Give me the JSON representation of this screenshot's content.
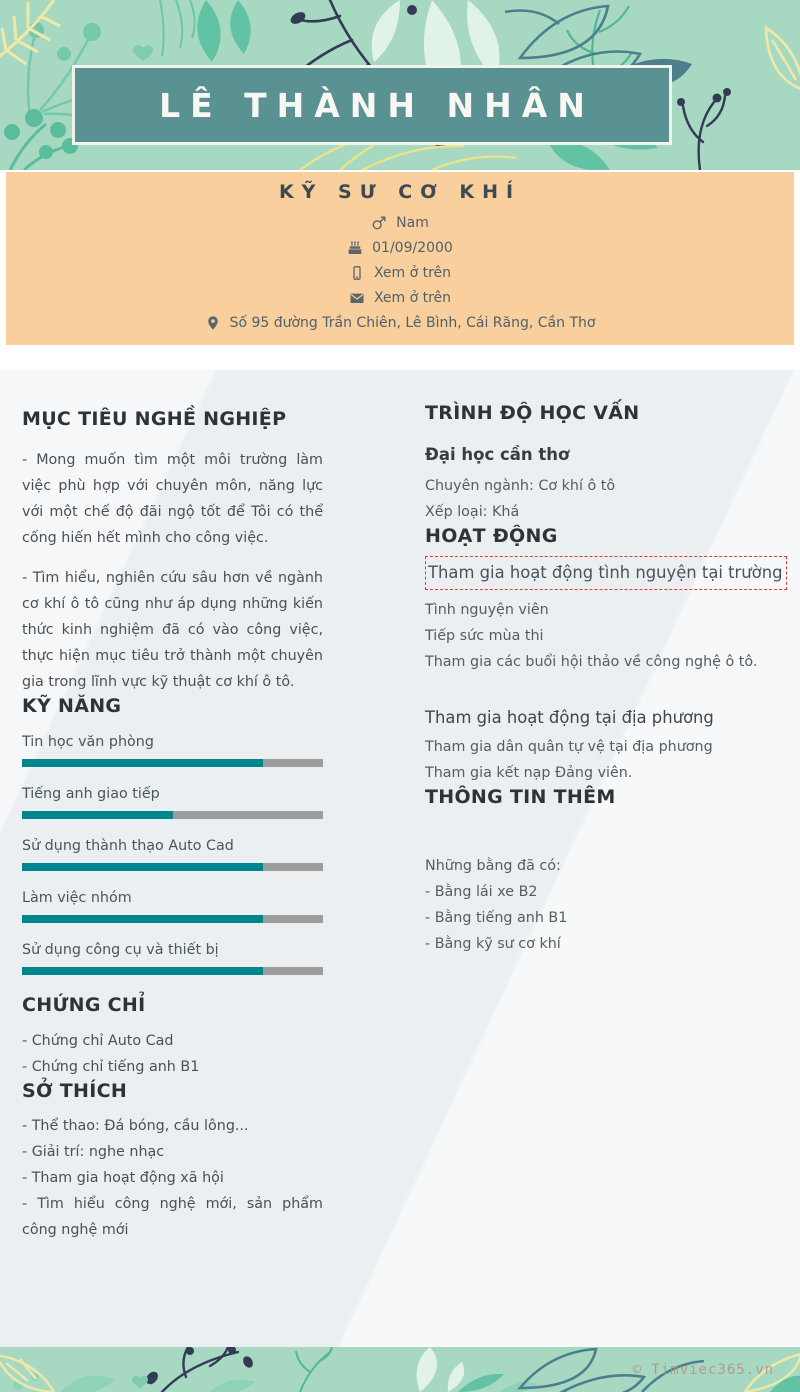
{
  "header": {
    "name": "LÊ THÀNH NHÂN"
  },
  "profile": {
    "title": "KỸ SƯ CƠ KHÍ",
    "gender": "Nam",
    "birthday": "01/09/2000",
    "phone": "Xem ở trên",
    "email": "Xem ở trên",
    "address": "Số 95 đường Trần Chiên, Lê Bình, Cái Răng, Cần Thơ"
  },
  "left": {
    "objective": {
      "heading": "MỤC TIÊU NGHỀ NGHIỆP",
      "paragraphs": [
        "- Mong muốn tìm một môi trường làm việc phù hợp với chuyên môn, năng lực với một chế độ đãi ngộ tốt để Tôi có thể cống hiến hết mình cho công việc.",
        "- Tìm hiểu, nghiên cứu sâu hơn về ngành cơ khí ô tô cũng như áp dụng những kiến thức kinh nghiệm đã có vào công việc, thực hiện mục tiêu trở thành một chuyên gia trong lĩnh vực kỹ thuật cơ khí ô tô."
      ]
    },
    "skills": {
      "heading": "KỸ NĂNG",
      "items": [
        {
          "label": "Tin học văn phòng",
          "percent": 80
        },
        {
          "label": "Tiếng anh giao tiếp",
          "percent": 50
        },
        {
          "label": "Sử dụng thành thạo Auto Cad",
          "percent": 80
        },
        {
          "label": "Làm việc nhóm",
          "percent": 80
        },
        {
          "label": "Sử dụng công cụ và thiết bị",
          "percent": 80
        }
      ]
    },
    "certificates": {
      "heading": "CHỨNG CHỈ",
      "items": [
        "- Chứng chỉ Auto Cad",
        "- Chứng chỉ tiếng anh B1"
      ]
    },
    "hobbies": {
      "heading": "SỞ THÍCH",
      "items": [
        "- Thể thao: Đá bóng, cầu lông...",
        "- Giải trí: nghe nhạc",
        "- Tham gia hoạt động xã hội",
        "- Tìm hiểu công nghệ mới, sản phẩm công nghệ mới"
      ]
    }
  },
  "right": {
    "education": {
      "heading": "TRÌNH ĐỘ HỌC VẤN",
      "school": "Đại học cần thơ",
      "details": [
        "Chuyên ngành: Cơ khí ô tô",
        "Xếp loại: Khá"
      ]
    },
    "activities": {
      "heading": "HOẠT ĐỘNG",
      "groups": [
        {
          "title": "Tham gia hoạt động tình nguyện tại trường",
          "lines": [
            "Tình nguyện viên",
            "Tiếp sức mùa thi",
            "Tham gia các buổi hội thảo về công nghệ ô tô."
          ]
        },
        {
          "title": "Tham gia hoạt động tại địa phương",
          "lines": [
            "Tham gia dân quân tự vệ tại địa phương",
            "Tham gia kết nạp Đảng viên."
          ]
        }
      ]
    },
    "more": {
      "heading": "THÔNG TIN THÊM",
      "intro": "Những bằng đã có:",
      "items": [
        "- Bằng lái xe B2",
        "- Bằng tiếng anh B1",
        "- Bằng kỹ sư cơ khí"
      ]
    }
  },
  "watermark": "© Timviec365.vn",
  "colors": {
    "header_mint": "#a7d9c2",
    "name_box_teal": "#5a9193",
    "profile_orange": "#f8cf9d",
    "skill_fill_teal": "#00868e",
    "skill_track_gray": "#9c9c9c",
    "selection_border_red": "#e03a3a",
    "body_bg": "#ebeff1"
  }
}
